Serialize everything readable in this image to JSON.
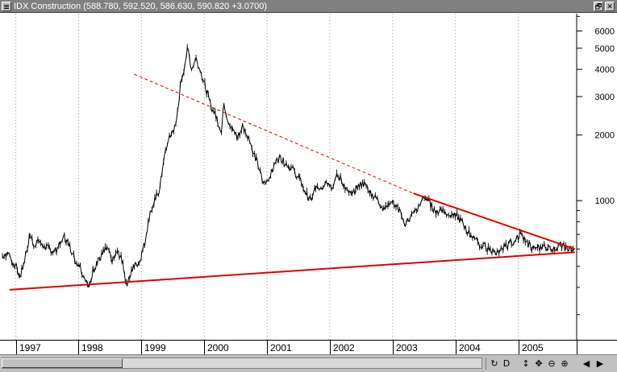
{
  "window": {
    "title": "IDX Construction (588.780, 592.520, 586.630, 590.820 +3.0700)",
    "restore_symbol": "🗗",
    "close_symbol": "✕"
  },
  "chart_data": {
    "type": "line",
    "title": "IDX Construction",
    "quote": {
      "open": 588.78,
      "high": 592.52,
      "low": 586.63,
      "close": 590.82,
      "change": 3.07
    },
    "y_scale": "log",
    "ylim": [
      230,
      7200
    ],
    "y_ticks": [
      1000,
      2000,
      3000,
      4000,
      5000,
      6000
    ],
    "y_tick_labels": [
      "1000",
      "2000",
      "3000",
      "4000",
      "5000",
      "6000"
    ],
    "xlim": [
      "1996-10",
      "2005-12"
    ],
    "x_tick_labels": [
      "1997",
      "1998",
      "1999",
      "2000",
      "2001",
      "2002",
      "2003",
      "2004",
      "2005"
    ],
    "grid": "vertical-dotted",
    "y_axis_position": "right",
    "series": [
      {
        "values": [
          [
            "1996-10-15",
            560
          ],
          [
            "1996-11-15",
            575
          ],
          [
            "1996-12-15",
            520
          ],
          [
            "1997-01-10",
            480
          ],
          [
            "1997-01-25",
            445
          ],
          [
            "1997-02-15",
            510
          ],
          [
            "1997-03-10",
            620
          ],
          [
            "1997-03-25",
            700
          ],
          [
            "1997-04-15",
            630
          ],
          [
            "1997-05-15",
            660
          ],
          [
            "1997-06-15",
            610
          ],
          [
            "1997-07-15",
            600
          ],
          [
            "1997-08-15",
            580
          ],
          [
            "1997-09-15",
            630
          ],
          [
            "1997-10-10",
            680
          ],
          [
            "1997-11-10",
            620
          ],
          [
            "1997-12-10",
            540
          ],
          [
            "1998-01-10",
            500
          ],
          [
            "1998-02-10",
            430
          ],
          [
            "1998-03-05",
            400
          ],
          [
            "1998-03-25",
            480
          ],
          [
            "1998-04-20",
            520
          ],
          [
            "1998-05-15",
            560
          ],
          [
            "1998-06-15",
            610
          ],
          [
            "1998-07-15",
            520
          ],
          [
            "1998-08-15",
            590
          ],
          [
            "1998-09-15",
            520
          ],
          [
            "1998-10-05",
            410
          ],
          [
            "1998-10-25",
            450
          ],
          [
            "1998-11-20",
            500
          ],
          [
            "1998-12-20",
            520
          ],
          [
            "1999-01-20",
            640
          ],
          [
            "1999-02-20",
            880
          ],
          [
            "1999-03-20",
            1000
          ],
          [
            "1999-04-20",
            1150
          ],
          [
            "1999-05-10",
            1550
          ],
          [
            "1999-06-01",
            1800
          ],
          [
            "1999-06-25",
            2050
          ],
          [
            "1999-07-20",
            2200
          ],
          [
            "1999-08-15",
            3300
          ],
          [
            "1999-09-10",
            4200
          ],
          [
            "1999-09-25",
            5100
          ],
          [
            "1999-10-20",
            4000
          ],
          [
            "1999-11-15",
            4500
          ],
          [
            "1999-12-15",
            3800
          ],
          [
            "2000-01-15",
            3200
          ],
          [
            "2000-02-10",
            2700
          ],
          [
            "2000-03-10",
            2450
          ],
          [
            "2000-04-10",
            2050
          ],
          [
            "2000-04-25",
            2800
          ],
          [
            "2000-05-20",
            2300
          ],
          [
            "2000-06-15",
            2100
          ],
          [
            "2000-07-15",
            1950
          ],
          [
            "2000-08-10",
            2200
          ],
          [
            "2000-09-10",
            2000
          ],
          [
            "2000-10-10",
            1700
          ],
          [
            "2000-11-10",
            1450
          ],
          [
            "2000-12-10",
            1180
          ],
          [
            "2001-01-10",
            1250
          ],
          [
            "2001-02-10",
            1420
          ],
          [
            "2001-03-10",
            1600
          ],
          [
            "2001-04-10",
            1500
          ],
          [
            "2001-05-10",
            1450
          ],
          [
            "2001-06-10",
            1350
          ],
          [
            "2001-07-10",
            1250
          ],
          [
            "2001-08-10",
            1100
          ],
          [
            "2001-09-10",
            1000
          ],
          [
            "2001-10-10",
            1150
          ],
          [
            "2001-11-10",
            1100
          ],
          [
            "2001-12-10",
            1250
          ],
          [
            "2002-01-10",
            1150
          ],
          [
            "2002-02-10",
            1300
          ],
          [
            "2002-03-10",
            1250
          ],
          [
            "2002-04-10",
            1100
          ],
          [
            "2002-05-10",
            1050
          ],
          [
            "2002-06-10",
            1150
          ],
          [
            "2002-07-10",
            1200
          ],
          [
            "2002-08-10",
            1150
          ],
          [
            "2002-09-10",
            1050
          ],
          [
            "2002-10-10",
            1000
          ],
          [
            "2002-11-10",
            900
          ],
          [
            "2002-12-10",
            1000
          ],
          [
            "2003-01-10",
            960
          ],
          [
            "2003-02-10",
            900
          ],
          [
            "2003-03-10",
            760
          ],
          [
            "2003-04-10",
            840
          ],
          [
            "2003-05-10",
            880
          ],
          [
            "2003-06-10",
            950
          ],
          [
            "2003-07-10",
            1050
          ],
          [
            "2003-08-10",
            960
          ],
          [
            "2003-09-10",
            880
          ],
          [
            "2003-10-10",
            920
          ],
          [
            "2003-11-10",
            870
          ],
          [
            "2003-12-10",
            880
          ],
          [
            "2004-01-10",
            850
          ],
          [
            "2004-02-10",
            790
          ],
          [
            "2004-03-10",
            720
          ],
          [
            "2004-04-10",
            690
          ],
          [
            "2004-05-10",
            640
          ],
          [
            "2004-06-10",
            620
          ],
          [
            "2004-07-10",
            600
          ],
          [
            "2004-08-10",
            580
          ],
          [
            "2004-09-10",
            570
          ],
          [
            "2004-10-10",
            610
          ],
          [
            "2004-11-10",
            640
          ],
          [
            "2004-12-10",
            650
          ],
          [
            "2005-01-10",
            700
          ],
          [
            "2005-02-10",
            650
          ],
          [
            "2005-03-10",
            620
          ],
          [
            "2005-04-10",
            590
          ],
          [
            "2005-05-10",
            610
          ],
          [
            "2005-06-10",
            620
          ],
          [
            "2005-07-10",
            590
          ],
          [
            "2005-08-10",
            610
          ],
          [
            "2005-09-10",
            620
          ],
          [
            "2005-10-10",
            600
          ],
          [
            "2005-11-20",
            590
          ]
        ]
      }
    ],
    "trendlines": [
      {
        "style": "solid",
        "from": [
          "1996-11-25",
          390
        ],
        "to": [
          "2005-11-25",
          580
        ]
      },
      {
        "style": "solid",
        "from": [
          "2003-05-01",
          1080
        ],
        "to": [
          "2005-11-25",
          600
        ]
      },
      {
        "style": "dashed",
        "from": [
          "1998-11-20",
          3800
        ],
        "to": [
          "2003-05-01",
          1080
        ]
      }
    ]
  },
  "toolbar": {
    "tools": [
      {
        "name": "refresh-tool",
        "glyph": "↻"
      },
      {
        "name": "daily-period-tool",
        "glyph": "D"
      },
      {
        "name": "vertical-resize-tool",
        "glyph": "↕"
      },
      {
        "name": "pan-tool",
        "glyph": "✥"
      },
      {
        "name": "zoom-out-tool",
        "glyph": "⊖"
      },
      {
        "name": "zoom-in-tool",
        "glyph": "⊕"
      },
      {
        "name": "scroll-left-tool",
        "glyph": "◀"
      },
      {
        "name": "scroll-right-tool",
        "glyph": "▶"
      }
    ]
  }
}
